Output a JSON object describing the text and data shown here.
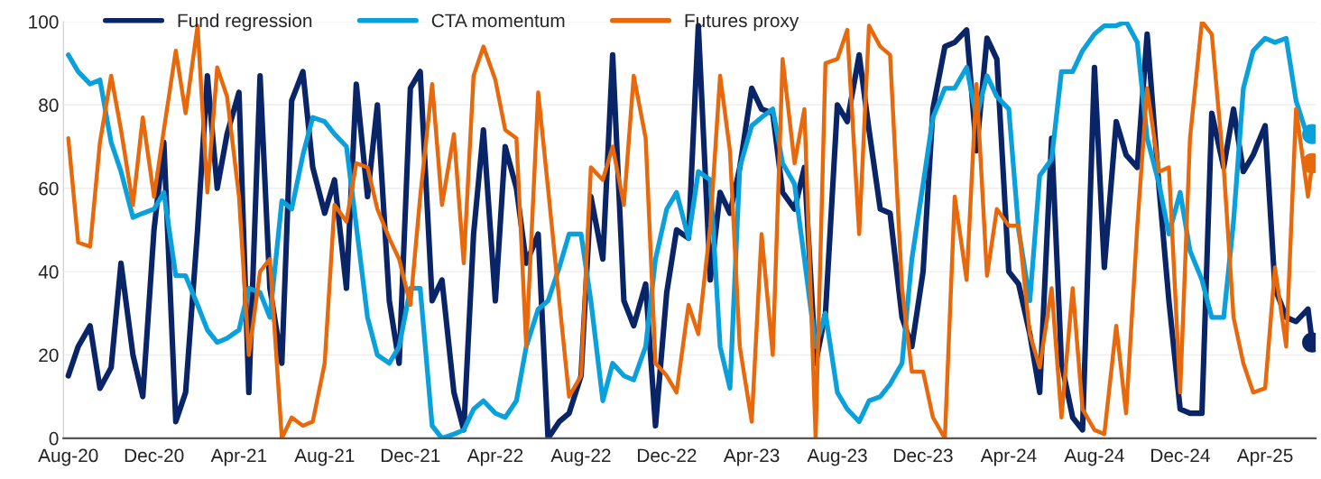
{
  "chart_data": {
    "type": "line",
    "x": [
      "2020-08-01",
      "2020-08-15",
      "2020-09-01",
      "2020-09-15",
      "2020-10-01",
      "2020-10-15",
      "2020-11-01",
      "2020-11-15",
      "2020-12-01",
      "2020-12-15",
      "2021-01-01",
      "2021-01-15",
      "2021-02-01",
      "2021-02-15",
      "2021-03-01",
      "2021-03-15",
      "2021-04-01",
      "2021-04-15",
      "2021-05-01",
      "2021-05-15",
      "2021-06-01",
      "2021-06-15",
      "2021-07-01",
      "2021-07-15",
      "2021-08-01",
      "2021-08-15",
      "2021-09-01",
      "2021-09-15",
      "2021-10-01",
      "2021-10-15",
      "2021-11-01",
      "2021-11-15",
      "2021-12-01",
      "2021-12-15",
      "2022-01-01",
      "2022-01-15",
      "2022-02-01",
      "2022-02-15",
      "2022-03-01",
      "2022-03-15",
      "2022-04-01",
      "2022-04-15",
      "2022-05-01",
      "2022-05-15",
      "2022-06-01",
      "2022-06-15",
      "2022-07-01",
      "2022-07-15",
      "2022-08-01",
      "2022-08-15",
      "2022-09-01",
      "2022-09-15",
      "2022-10-01",
      "2022-10-15",
      "2022-11-01",
      "2022-11-15",
      "2022-12-01",
      "2022-12-15",
      "2023-01-01",
      "2023-01-15",
      "2023-02-01",
      "2023-02-15",
      "2023-03-01",
      "2023-03-15",
      "2023-04-01",
      "2023-04-15",
      "2023-05-01",
      "2023-05-15",
      "2023-06-01",
      "2023-06-15",
      "2023-07-01",
      "2023-07-15",
      "2023-08-01",
      "2023-08-15",
      "2023-09-01",
      "2023-09-15",
      "2023-10-01",
      "2023-10-15",
      "2023-11-01",
      "2023-11-15",
      "2023-12-01",
      "2023-12-15",
      "2024-01-01",
      "2024-01-15",
      "2024-02-01",
      "2024-02-15",
      "2024-03-01",
      "2024-03-15",
      "2024-04-01",
      "2024-04-15",
      "2024-05-01",
      "2024-05-15",
      "2024-06-01",
      "2024-06-15",
      "2024-07-01",
      "2024-07-15",
      "2024-08-01",
      "2024-08-15",
      "2024-09-01",
      "2024-09-15",
      "2024-10-01",
      "2024-10-15",
      "2024-11-01",
      "2024-11-15",
      "2024-12-01",
      "2024-12-15",
      "2025-01-01",
      "2025-01-15",
      "2025-02-01",
      "2025-02-15",
      "2025-03-01",
      "2025-03-15",
      "2025-04-01",
      "2025-04-15",
      "2025-05-01",
      "2025-05-15",
      "2025-06-01",
      "2025-06-07"
    ],
    "series": [
      {
        "name": "Fund regression",
        "color": "#0a2468",
        "values": [
          15,
          22,
          27,
          12,
          17,
          42,
          20,
          10,
          50,
          71,
          4,
          11,
          50,
          87,
          60,
          73,
          83,
          11,
          87,
          36,
          18,
          81,
          88,
          65,
          54,
          62,
          36,
          85,
          58,
          80,
          33,
          18,
          84,
          88,
          33,
          38,
          11,
          2,
          49,
          74,
          33,
          70,
          60,
          42,
          49,
          0,
          4,
          6,
          15,
          58,
          43,
          92,
          33,
          27,
          37,
          3,
          35,
          50,
          48,
          99,
          38,
          59,
          54,
          65,
          84,
          79,
          78,
          59,
          55,
          65,
          18,
          30,
          80,
          76,
          92,
          74,
          55,
          54,
          29,
          22,
          40,
          79,
          94,
          95,
          98,
          69,
          96,
          91,
          40,
          37,
          25,
          11,
          72,
          18,
          5,
          2,
          89,
          41,
          76,
          68,
          65,
          97,
          60,
          33,
          7,
          6,
          6,
          78,
          65,
          79,
          64,
          68,
          75,
          36,
          29,
          28,
          31,
          23
        ]
      },
      {
        "name": "CTA momentum",
        "color": "#0aa0dc",
        "values": [
          92,
          88,
          85,
          86,
          71,
          64,
          53,
          54,
          55,
          59,
          39,
          39,
          32,
          26,
          23,
          24,
          26,
          36,
          35,
          29,
          57,
          55,
          68,
          77,
          76,
          73,
          70,
          51,
          29,
          20,
          18,
          22,
          36,
          36,
          3,
          0,
          1,
          2,
          7,
          9,
          6,
          5,
          9,
          22,
          31,
          33,
          41,
          49,
          49,
          33,
          9,
          18,
          15,
          14,
          22,
          43,
          55,
          59,
          48,
          64,
          62,
          22,
          12,
          65,
          75,
          77,
          79,
          66,
          61,
          43,
          22,
          30,
          11,
          7,
          4,
          9,
          10,
          13,
          18,
          43,
          61,
          77,
          84,
          84,
          89,
          77,
          87,
          82,
          79,
          50,
          33,
          63,
          67,
          88,
          88,
          93,
          97,
          99,
          99,
          100,
          95,
          72,
          61,
          49,
          59,
          45,
          38,
          29,
          29,
          52,
          84,
          93,
          96,
          95,
          96,
          81,
          72,
          73
        ]
      },
      {
        "name": "Futures proxy",
        "color": "#e8690c",
        "values": [
          72,
          47,
          46,
          71,
          87,
          74,
          56,
          77,
          58,
          74,
          93,
          78,
          99,
          59,
          89,
          82,
          58,
          20,
          40,
          43,
          0,
          5,
          3,
          4,
          18,
          56,
          52,
          66,
          65,
          55,
          48,
          43,
          32,
          58,
          85,
          56,
          73,
          42,
          87,
          94,
          86,
          74,
          72,
          22,
          83,
          60,
          33,
          10,
          15,
          65,
          62,
          70,
          56,
          87,
          72,
          18,
          15,
          11,
          32,
          25,
          51,
          87,
          69,
          22,
          4,
          49,
          20,
          91,
          66,
          79,
          0,
          90,
          91,
          98,
          49,
          99,
          94,
          92,
          36,
          16,
          16,
          5,
          0,
          58,
          38,
          85,
          39,
          55,
          51,
          51,
          25,
          17,
          36,
          5,
          36,
          7,
          2,
          1,
          27,
          6,
          51,
          84,
          64,
          65,
          11,
          72,
          100,
          97,
          65,
          29,
          18,
          11,
          12,
          41,
          22,
          79,
          58,
          66
        ]
      },
      {
        "type": "scatter",
        "color": "#0a2468",
        "x": [
          "2025-06-07"
        ],
        "values": [
          23
        ]
      },
      {
        "type": "scatter",
        "color": "#0aa0dc",
        "x": [
          "2025-06-07"
        ],
        "values": [
          73
        ]
      },
      {
        "type": "scatter",
        "color": "#e8690c",
        "x": [
          "2025-06-07"
        ],
        "values": [
          66
        ]
      }
    ],
    "xlim": [
      "2020-07-25",
      "2025-06-12"
    ],
    "xticks": [
      {
        "value": "2020-08-01",
        "label": "Aug-20"
      },
      {
        "value": "2020-12-01",
        "label": "Dec-20"
      },
      {
        "value": "2021-04-01",
        "label": "Apr-21"
      },
      {
        "value": "2021-08-01",
        "label": "Aug-21"
      },
      {
        "value": "2021-12-01",
        "label": "Dec-21"
      },
      {
        "value": "2022-04-01",
        "label": "Apr-22"
      },
      {
        "value": "2022-08-01",
        "label": "Aug-22"
      },
      {
        "value": "2022-12-01",
        "label": "Dec-22"
      },
      {
        "value": "2023-04-01",
        "label": "Apr-23"
      },
      {
        "value": "2023-08-01",
        "label": "Aug-23"
      },
      {
        "value": "2023-12-01",
        "label": "Dec-23"
      },
      {
        "value": "2024-04-01",
        "label": "Apr-24"
      },
      {
        "value": "2024-08-01",
        "label": "Aug-24"
      },
      {
        "value": "2024-12-01",
        "label": "Dec-24"
      },
      {
        "value": "2025-04-01",
        "label": "Apr-25"
      }
    ],
    "ylim": [
      0,
      100
    ],
    "yticks": [
      0,
      20,
      40,
      60,
      80,
      100
    ],
    "grid": "y",
    "legend": "top left",
    "line_style": "solid"
  }
}
